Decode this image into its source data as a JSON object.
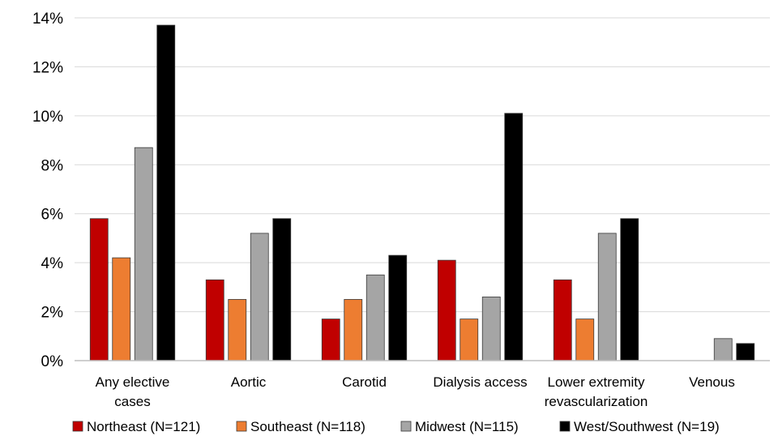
{
  "chart_data": {
    "type": "bar",
    "title": "",
    "xlabel": "",
    "ylabel": "",
    "ylim": [
      0,
      14
    ],
    "y_ticks": [
      "0%",
      "2%",
      "4%",
      "6%",
      "8%",
      "10%",
      "12%",
      "14%"
    ],
    "grid": true,
    "legend_position": "bottom",
    "categories": [
      [
        "Any elective",
        "cases"
      ],
      [
        "Aortic"
      ],
      [
        "Carotid"
      ],
      [
        "Dialysis access"
      ],
      [
        "Lower extremity",
        "revascularization"
      ],
      [
        "Venous"
      ]
    ],
    "series": [
      {
        "name": "Northeast (N=121)",
        "color": "#c00000",
        "values": [
          5.8,
          3.3,
          1.7,
          4.1,
          3.3,
          0
        ]
      },
      {
        "name": "Southeast (N=118)",
        "color": "#ed7d31",
        "values": [
          4.2,
          2.5,
          2.5,
          1.7,
          1.7,
          0
        ]
      },
      {
        "name": "Midwest (N=115)",
        "color": "#a5a5a5",
        "values": [
          8.7,
          5.2,
          3.5,
          2.6,
          5.2,
          0.9
        ]
      },
      {
        "name": "West/Southwest (N=19)",
        "color": "#000000",
        "values": [
          13.7,
          5.8,
          4.3,
          10.1,
          5.8,
          0.7
        ]
      }
    ]
  }
}
